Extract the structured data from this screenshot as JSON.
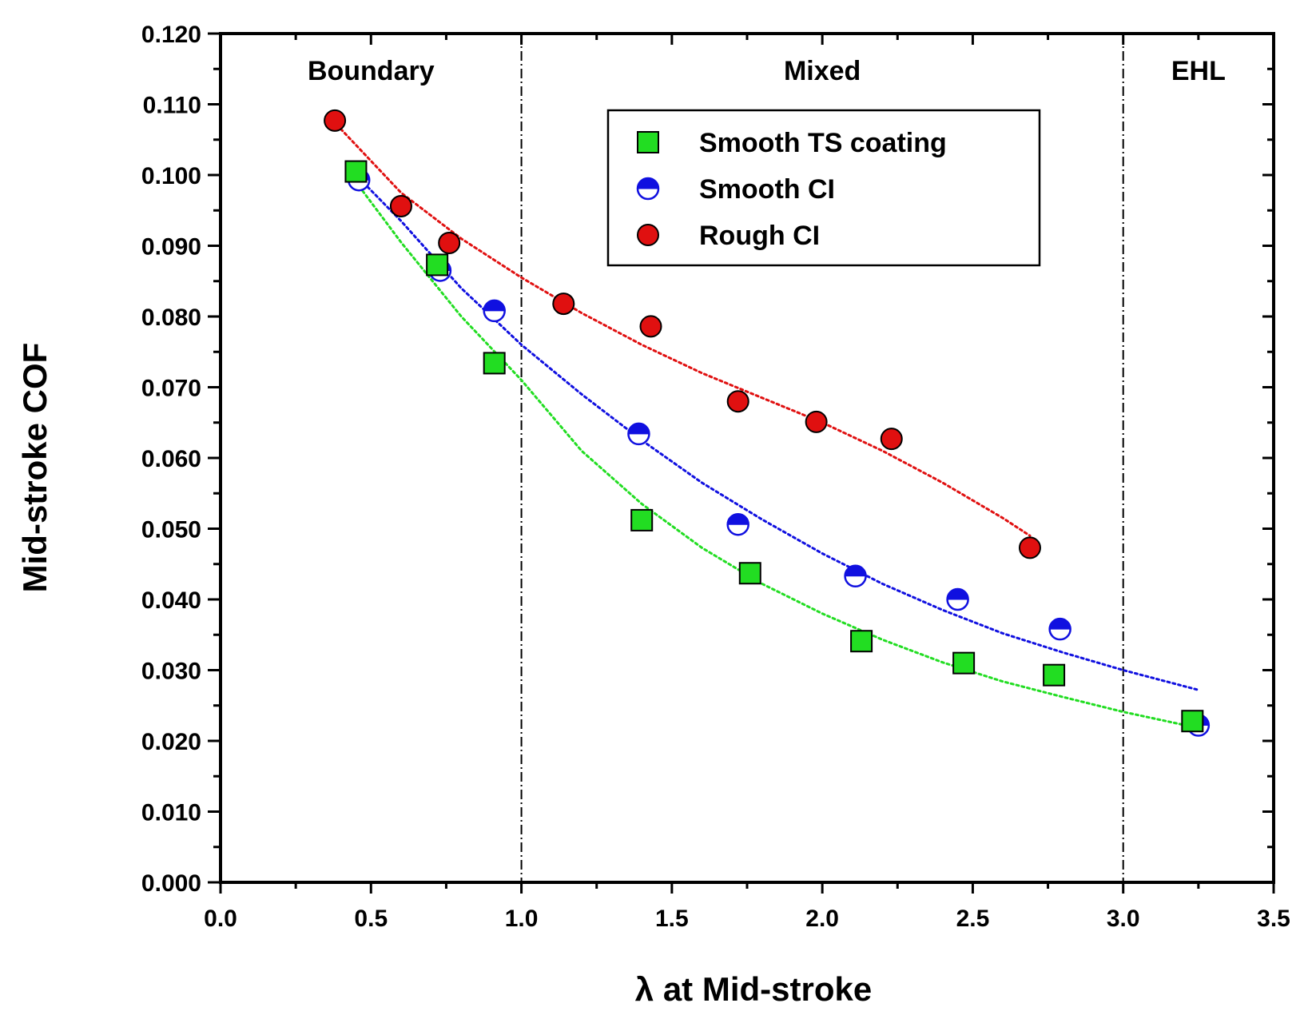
{
  "chart_data": {
    "type": "scatter",
    "title": "",
    "xlabel": "λ at Mid-stroke",
    "ylabel": "Mid-stroke COF",
    "xlim": [
      0.0,
      3.5
    ],
    "ylim": [
      0.0,
      0.12
    ],
    "xticks": [
      "0.0",
      "0.5",
      "1.0",
      "1.5",
      "2.0",
      "2.5",
      "3.0",
      "3.5"
    ],
    "yticks": [
      "0.000",
      "0.010",
      "0.020",
      "0.030",
      "0.040",
      "0.050",
      "0.060",
      "0.070",
      "0.080",
      "0.090",
      "0.100",
      "0.110",
      "0.120"
    ],
    "grid": false,
    "legend_position": "top-center",
    "regions": [
      {
        "label": "Boundary",
        "x_center": 0.5
      },
      {
        "label": "Mixed",
        "x_center": 2.0
      },
      {
        "label": "EHL",
        "x_center": 3.25
      }
    ],
    "region_boundaries": [
      1.0,
      3.0
    ],
    "series": [
      {
        "name": "Smooth TS coating",
        "marker": "square",
        "color": "#22dd22",
        "x": [
          0.45,
          0.72,
          0.91,
          1.4,
          1.76,
          2.13,
          2.47,
          2.77,
          3.23
        ],
        "y": [
          0.1005,
          0.0873,
          0.0734,
          0.0512,
          0.0437,
          0.0341,
          0.031,
          0.0293,
          0.0228
        ],
        "trend": {
          "x": [
            0.45,
            0.6,
            0.8,
            1.0,
            1.2,
            1.4,
            1.6,
            1.8,
            2.0,
            2.2,
            2.4,
            2.6,
            2.8,
            3.0,
            3.23
          ],
          "y": [
            0.099,
            0.0905,
            0.08,
            0.071,
            0.061,
            0.0535,
            0.0473,
            0.0422,
            0.038,
            0.0343,
            0.0311,
            0.0284,
            0.0262,
            0.0241,
            0.022
          ]
        }
      },
      {
        "name": "Smooth CI",
        "marker": "half-circle",
        "color": "#1010e0",
        "x": [
          0.46,
          0.73,
          0.91,
          1.39,
          1.72,
          2.11,
          2.45,
          2.79,
          3.25
        ],
        "y": [
          0.0993,
          0.0865,
          0.0808,
          0.0634,
          0.0506,
          0.0433,
          0.04,
          0.0358,
          0.0222
        ],
        "trend": {
          "x": [
            0.45,
            0.6,
            0.8,
            1.0,
            1.2,
            1.4,
            1.6,
            1.8,
            2.0,
            2.2,
            2.4,
            2.6,
            2.8,
            3.0,
            3.25
          ],
          "y": [
            0.1,
            0.0935,
            0.084,
            0.076,
            0.069,
            0.0625,
            0.0565,
            0.0513,
            0.0465,
            0.0422,
            0.0385,
            0.0352,
            0.0325,
            0.03,
            0.0272
          ]
        }
      },
      {
        "name": "Rough CI",
        "marker": "circle",
        "color": "#e01010",
        "x": [
          0.38,
          0.6,
          0.76,
          1.14,
          1.43,
          1.72,
          1.98,
          2.23,
          2.69
        ],
        "y": [
          0.1077,
          0.0956,
          0.0904,
          0.0818,
          0.0786,
          0.068,
          0.0651,
          0.0627,
          0.0473
        ],
        "trend": {
          "x": [
            0.4,
            0.6,
            0.8,
            1.0,
            1.2,
            1.4,
            1.6,
            1.8,
            2.0,
            2.2,
            2.4,
            2.6,
            2.69
          ],
          "y": [
            0.1065,
            0.0975,
            0.091,
            0.0855,
            0.0805,
            0.076,
            0.072,
            0.0685,
            0.065,
            0.061,
            0.0565,
            0.0515,
            0.049
          ]
        }
      }
    ]
  }
}
